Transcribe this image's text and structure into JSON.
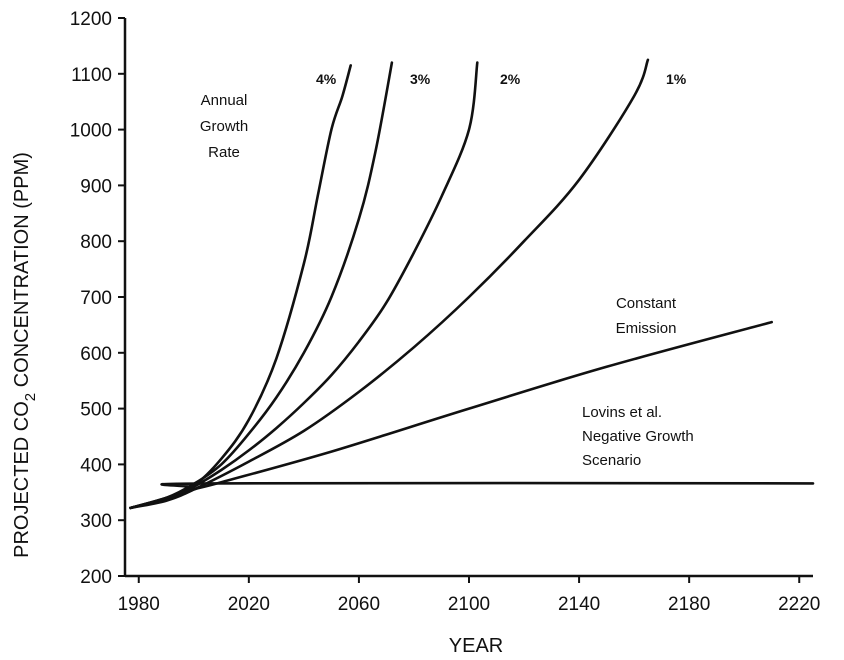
{
  "chart_data": {
    "type": "line",
    "xlabel": "YEAR",
    "ylabel": {
      "prefix": "PROJECTED CO",
      "subscript": "2",
      "suffix": " CONCENTRATION (PPM)"
    },
    "xlim": [
      1975,
      2225
    ],
    "ylim": [
      200,
      1200
    ],
    "xticks": [
      1980,
      2020,
      2060,
      2100,
      2140,
      2180,
      2220
    ],
    "yticks": [
      200,
      300,
      400,
      500,
      600,
      700,
      800,
      900,
      1000,
      1100,
      1200
    ],
    "grid": false,
    "legend": null,
    "series": [
      {
        "name": "4%",
        "x": [
          1977,
          1990,
          2000,
          2010,
          2020,
          2030,
          2040,
          2045,
          2050,
          2054,
          2057
        ],
        "y": [
          322,
          340,
          362,
          410,
          480,
          590,
          760,
          880,
          1000,
          1060,
          1115
        ]
      },
      {
        "name": "3%",
        "x": [
          1977,
          1990,
          2000,
          2010,
          2020,
          2030,
          2040,
          2050,
          2060,
          2066,
          2072
        ],
        "y": [
          322,
          340,
          365,
          400,
          455,
          520,
          600,
          700,
          840,
          960,
          1120
        ]
      },
      {
        "name": "2%",
        "x": [
          1977,
          1990,
          2000,
          2010,
          2020,
          2030,
          2040,
          2050,
          2060,
          2070,
          2080,
          2090,
          2100,
          2103
        ],
        "y": [
          322,
          338,
          360,
          390,
          425,
          465,
          510,
          560,
          620,
          690,
          780,
          880,
          1000,
          1120
        ]
      },
      {
        "name": "1%",
        "x": [
          1977,
          1990,
          2000,
          2020,
          2040,
          2060,
          2080,
          2100,
          2120,
          2140,
          2160,
          2165
        ],
        "y": [
          322,
          335,
          355,
          405,
          460,
          530,
          610,
          700,
          800,
          910,
          1060,
          1125
        ]
      },
      {
        "name": "Constant Emission",
        "x": [
          1977,
          1990,
          2000,
          2010,
          2050,
          2100,
          2150,
          2210
        ],
        "y": [
          322,
          338,
          355,
          368,
          423,
          500,
          575,
          655
        ]
      },
      {
        "name": "Lovins et al. Negative Growth Scenario",
        "x": [
          1977,
          1990,
          2000,
          2006,
          2225
        ],
        "y": [
          322,
          340,
          358,
          366,
          366
        ]
      }
    ],
    "annotations": [
      {
        "lines": [
          "Annual",
          "Growth",
          "Rate"
        ]
      },
      {
        "lines": [
          "Constant",
          "Emission"
        ]
      },
      {
        "lines": [
          "Lovins et al.",
          "Negative Growth",
          "Scenario"
        ]
      }
    ]
  }
}
